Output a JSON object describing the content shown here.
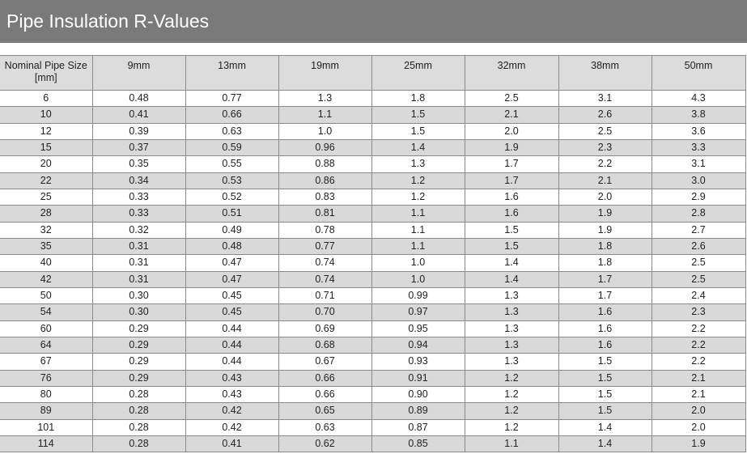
{
  "page": {
    "title": "Pipe Insulation R-Values"
  },
  "table": {
    "headers": [
      "Nominal Pipe Size [mm]",
      "9mm",
      "13mm",
      "19mm",
      "25mm",
      "32mm",
      "38mm",
      "50mm"
    ],
    "rows": [
      [
        "6",
        "0.48",
        "0.77",
        "1.3",
        "1.8",
        "2.5",
        "3.1",
        "4.3"
      ],
      [
        "10",
        "0.41",
        "0.66",
        "1.1",
        "1.5",
        "2.1",
        "2.6",
        "3.8"
      ],
      [
        "12",
        "0.39",
        "0.63",
        "1.0",
        "1.5",
        "2.0",
        "2.5",
        "3.6"
      ],
      [
        "15",
        "0.37",
        "0.59",
        "0.96",
        "1.4",
        "1.9",
        "2.3",
        "3.3"
      ],
      [
        "20",
        "0.35",
        "0.55",
        "0.88",
        "1.3",
        "1.7",
        "2.2",
        "3.1"
      ],
      [
        "22",
        "0.34",
        "0.53",
        "0.86",
        "1.2",
        "1.7",
        "2.1",
        "3.0"
      ],
      [
        "25",
        "0.33",
        "0.52",
        "0.83",
        "1.2",
        "1.6",
        "2.0",
        "2.9"
      ],
      [
        "28",
        "0.33",
        "0.51",
        "0.81",
        "1.1",
        "1.6",
        "1.9",
        "2.8"
      ],
      [
        "32",
        "0.32",
        "0.49",
        "0.78",
        "1.1",
        "1.5",
        "1.9",
        "2.7"
      ],
      [
        "35",
        "0.31",
        "0.48",
        "0.77",
        "1.1",
        "1.5",
        "1.8",
        "2.6"
      ],
      [
        "40",
        "0.31",
        "0.47",
        "0.74",
        "1.0",
        "1.4",
        "1.8",
        "2.5"
      ],
      [
        "42",
        "0.31",
        "0.47",
        "0.74",
        "1.0",
        "1.4",
        "1.7",
        "2.5"
      ],
      [
        "50",
        "0.30",
        "0.45",
        "0.71",
        "0.99",
        "1.3",
        "1.7",
        "2.4"
      ],
      [
        "54",
        "0.30",
        "0.45",
        "0.70",
        "0.97",
        "1.3",
        "1.6",
        "2.3"
      ],
      [
        "60",
        "0.29",
        "0.44",
        "0.69",
        "0.95",
        "1.3",
        "1.6",
        "2.2"
      ],
      [
        "64",
        "0.29",
        "0.44",
        "0.68",
        "0.94",
        "1.3",
        "1.6",
        "2.2"
      ],
      [
        "67",
        "0.29",
        "0.44",
        "0.67",
        "0.93",
        "1.3",
        "1.5",
        "2.2"
      ],
      [
        "76",
        "0.29",
        "0.43",
        "0.66",
        "0.91",
        "1.2",
        "1.5",
        "2.1"
      ],
      [
        "80",
        "0.28",
        "0.43",
        "0.66",
        "0.90",
        "1.2",
        "1.5",
        "2.1"
      ],
      [
        "89",
        "0.28",
        "0.42",
        "0.65",
        "0.89",
        "1.2",
        "1.5",
        "2.0"
      ],
      [
        "101",
        "0.28",
        "0.42",
        "0.63",
        "0.87",
        "1.2",
        "1.4",
        "2.0"
      ],
      [
        "114",
        "0.28",
        "0.41",
        "0.62",
        "0.85",
        "1.1",
        "1.4",
        "1.9"
      ]
    ]
  },
  "colors": {
    "title_bar": "#7a7a7a",
    "title_text": "#ffffff",
    "header_bg": "#dcdcdc",
    "stripe_bg": "#d9d9d9",
    "border": "#8a8a8a"
  }
}
